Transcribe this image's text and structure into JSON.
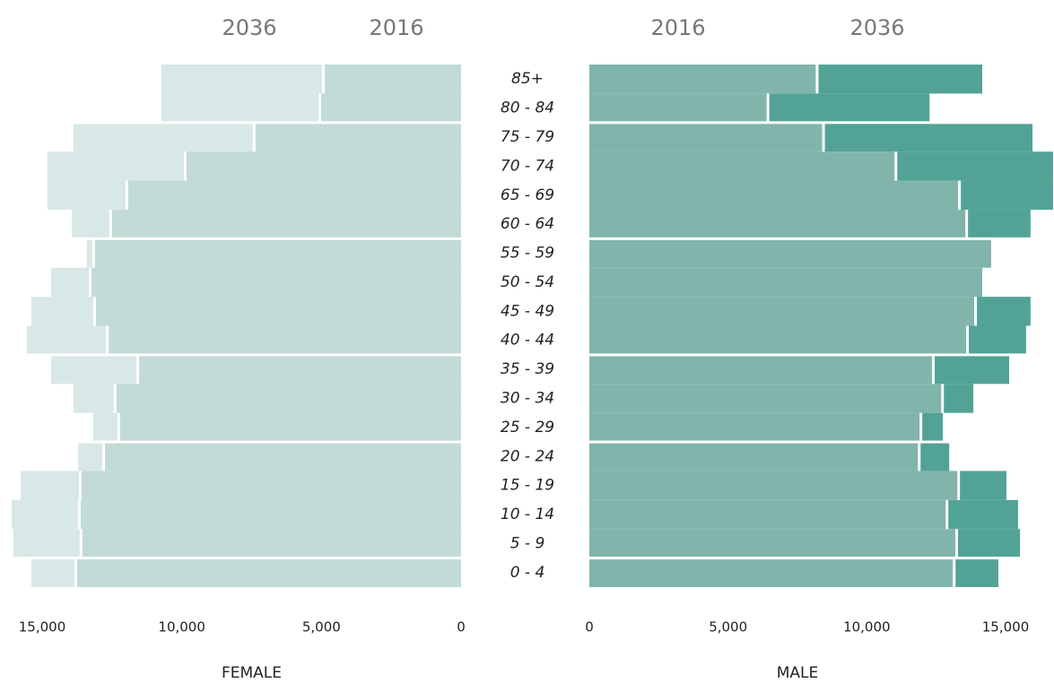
{
  "chart_data": {
    "type": "pyramid",
    "categories": [
      "85+",
      "80 - 84",
      "75 - 79",
      "70 - 74",
      "65 - 69",
      "60 - 64",
      "55 - 59",
      "50 - 54",
      "45 - 49",
      "40 - 44",
      "35 - 39",
      "30 - 34",
      "25 - 29",
      "20 - 24",
      "15 - 19",
      "10 - 14",
      "5 - 9",
      "0 - 4"
    ],
    "panels": [
      {
        "name": "FEMALE",
        "side": "left",
        "xlim": [
          0,
          15000
        ],
        "xticks": [
          0,
          {
            "value": 5000,
            "label": "5,000"
          },
          {
            "value": 10000,
            "label": "10,000"
          },
          {
            "value": 15000,
            "label": "15,000"
          }
        ],
        "series": [
          {
            "name": "2016",
            "color": "#c2dbd6",
            "values": [
              4880,
              5010,
              7360,
              9830,
              11920,
              12500,
              13110,
              13230,
              13070,
              12620,
              11530,
              12340,
              12210,
              12750,
              13590,
              13620,
              13560,
              13750
            ]
          },
          {
            "name": "2036",
            "color": "#d8e8e6",
            "values": [
              10730,
              10730,
              13880,
              14810,
              14810,
              13940,
              13400,
              14680,
              15390,
              15550,
              14680,
              13880,
              13170,
              13720,
              15770,
              16090,
              16030,
              15390
            ]
          }
        ]
      },
      {
        "name": "MALE",
        "side": "right",
        "xlim": [
          0,
          15000
        ],
        "xticks": [
          0,
          {
            "value": 5000,
            "label": "5,000"
          },
          {
            "value": 10000,
            "label": "10,000"
          },
          {
            "value": 15000,
            "label": "15,000"
          }
        ],
        "series": [
          {
            "name": "2016",
            "color": "#81b5ab",
            "values": [
              8160,
              6390,
              8390,
              11000,
              13290,
              13550,
              14480,
              14160,
              13870,
              13580,
              12350,
              12680,
              11900,
              11840,
              13260,
              12840,
              13190,
              13100
            ]
          },
          {
            "name": "2036",
            "color": "#52a396",
            "values": [
              14160,
              12260,
              15970,
              16710,
              16710,
              15900,
              14480,
              14160,
              15900,
              15740,
              15130,
              13840,
              12740,
              12970,
              15030,
              15450,
              15520,
              14740
            ]
          }
        ]
      }
    ]
  }
}
